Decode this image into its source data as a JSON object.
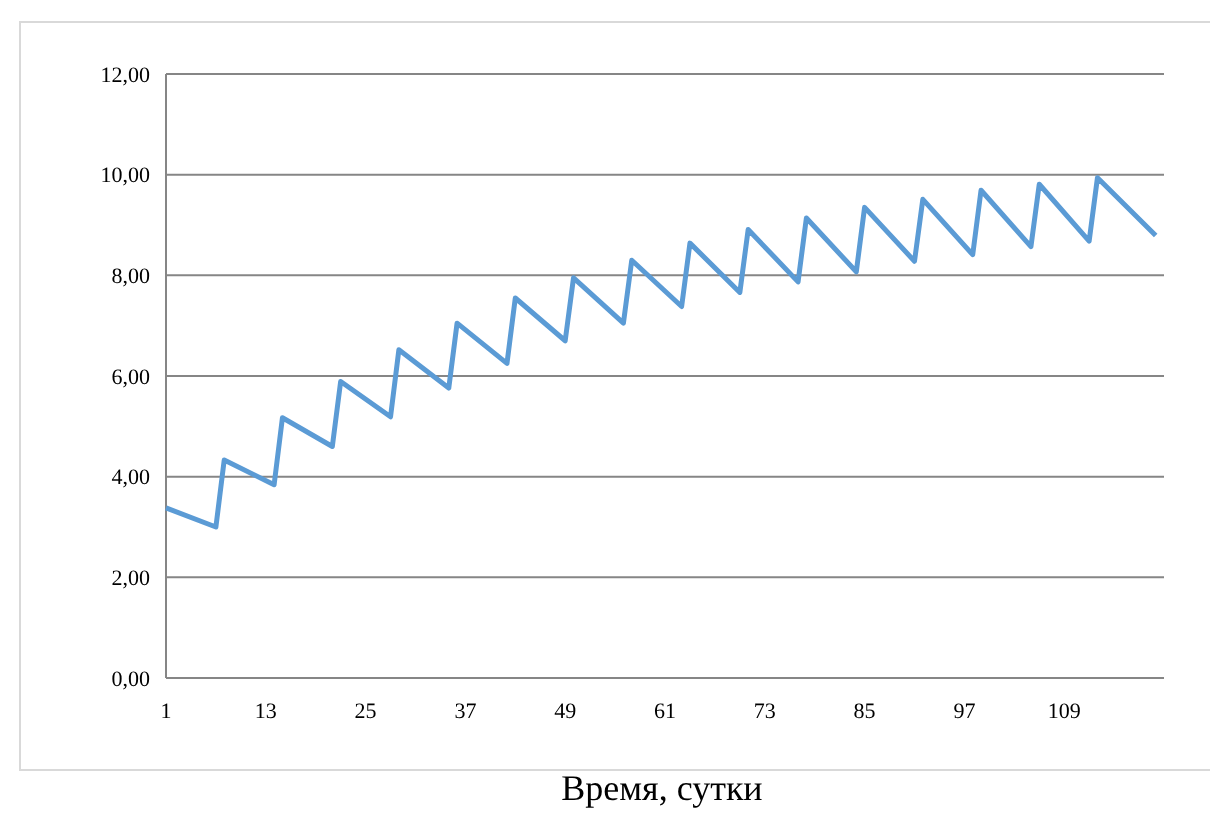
{
  "chart_data": {
    "type": "line",
    "xlabel": "Время, сутки",
    "x": [
      1,
      7,
      8,
      14,
      15,
      21,
      22,
      28,
      29,
      35,
      36,
      42,
      43,
      49,
      50,
      56,
      57,
      63,
      64,
      70,
      71,
      77,
      78,
      84,
      85,
      91,
      92,
      98,
      99,
      105,
      106,
      112,
      113,
      120
    ],
    "series": [
      {
        "color": "#5b9bd5",
        "values": [
          3.38,
          3.0,
          4.33,
          3.84,
          5.17,
          4.6,
          5.89,
          5.19,
          6.52,
          5.76,
          7.05,
          6.25,
          7.55,
          6.7,
          7.95,
          7.05,
          8.3,
          7.38,
          8.64,
          7.66,
          8.91,
          7.87,
          9.14,
          8.07,
          9.35,
          8.28,
          9.51,
          8.41,
          9.69,
          8.57,
          9.81,
          8.68,
          9.94,
          8.79
        ]
      }
    ],
    "xlim": [
      1,
      121
    ],
    "xticks": [
      1,
      13,
      25,
      37,
      49,
      61,
      73,
      85,
      97,
      109
    ],
    "ylim": [
      0,
      12
    ],
    "yticks": [
      {
        "value": 0,
        "label": "0,00"
      },
      {
        "value": 2,
        "label": "2,00"
      },
      {
        "value": 4,
        "label": "4,00"
      },
      {
        "value": 6,
        "label": "6,00"
      },
      {
        "value": 8,
        "label": "8,00"
      },
      {
        "value": 10,
        "label": "10,00"
      },
      {
        "value": 12,
        "label": "12,00"
      }
    ],
    "grid": "y",
    "marker": "none",
    "line_style": "solid"
  }
}
